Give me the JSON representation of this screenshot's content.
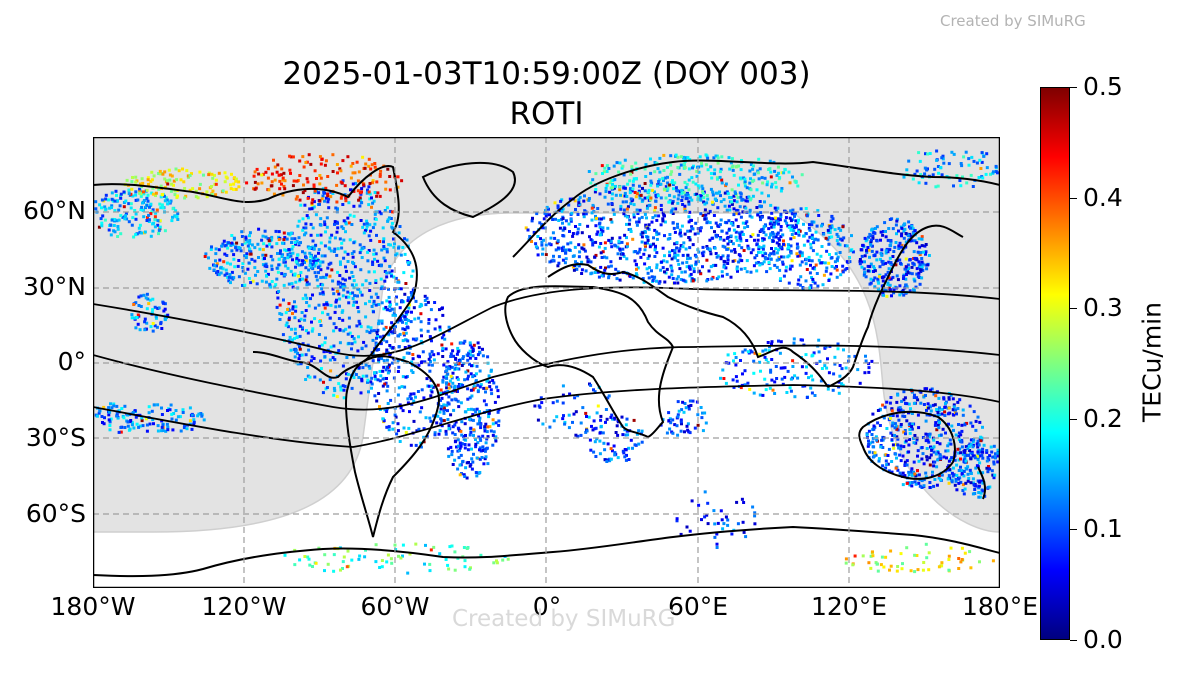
{
  "watermark": "Created by SIMuRG",
  "title": {
    "line1": "2025-01-03T10:59:00Z (DOY 003)",
    "line2": "ROTI"
  },
  "map": {
    "projection": "equirectangular",
    "lon_range": [
      -180,
      180
    ],
    "lat_range": [
      -90,
      90
    ],
    "gridlines": true,
    "night_shading": true,
    "coastlines": true,
    "magnetic_equator_lines": 3,
    "colormap": "jet"
  },
  "axes": {
    "lat_ticks": [
      "60°N",
      "30°N",
      "0°",
      "30°S",
      "60°S"
    ],
    "lon_ticks": [
      "180°W",
      "120°W",
      "60°W",
      "0°",
      "60°E",
      "120°E",
      "180°E"
    ]
  },
  "colorbar": {
    "label": "TECu/min",
    "min": 0.0,
    "max": 0.5,
    "ticks": [
      "0.0",
      "0.1",
      "0.2",
      "0.3",
      "0.4",
      "0.5"
    ]
  }
}
